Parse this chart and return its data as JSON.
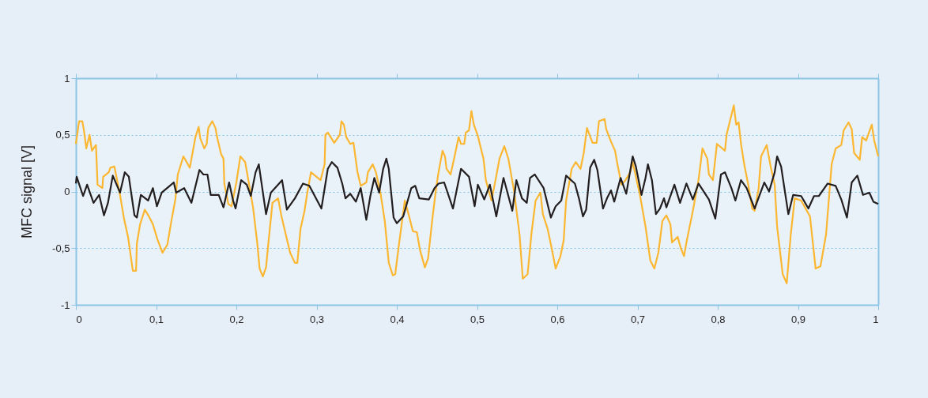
{
  "chart_data": {
    "type": "line",
    "ylabel": "MFC signal [V]",
    "xlim": [
      0,
      1
    ],
    "ylim": [
      -1,
      1
    ],
    "xticks": [
      0,
      {
        "value": 0.1,
        "label": "0,1"
      },
      {
        "value": 0.2,
        "label": "0,2"
      },
      {
        "value": 0.3,
        "label": "0,3"
      },
      {
        "value": 0.4,
        "label": "0,4"
      },
      {
        "value": 0.5,
        "label": "0,5"
      },
      {
        "value": 0.6,
        "label": "0,6"
      },
      {
        "value": 0.7,
        "label": "0,7"
      },
      {
        "value": 0.8,
        "label": "0,8"
      },
      {
        "value": 0.9,
        "label": "0,9"
      },
      1
    ],
    "yticks": [
      -1,
      {
        "value": -0.5,
        "label": "-0,5"
      },
      0,
      {
        "value": 0.5,
        "label": "0,5"
      },
      1
    ],
    "grid": "y",
    "legend": false,
    "line_style": "solid",
    "marker": "none",
    "series": [
      {
        "color": "#fbb731",
        "x": [
          0,
          0.004,
          0.008,
          0.01,
          0.013,
          0.017,
          0.02,
          0.025,
          0.026,
          0.027,
          0.033,
          0.034,
          0.041,
          0.043,
          0.048,
          0.055,
          0.06,
          0.065,
          0.071,
          0.075,
          0.076,
          0.08,
          0.086,
          0.091,
          0.096,
          0.102,
          0.108,
          0.114,
          0.119,
          0.124,
          0.127,
          0.134,
          0.142,
          0.149,
          0.153,
          0.155,
          0.16,
          0.163,
          0.165,
          0.17,
          0.174,
          0.176,
          0.181,
          0.184,
          0.185,
          0.19,
          0.194,
          0.2,
          0.205,
          0.211,
          0.216,
          0.221,
          0.226,
          0.229,
          0.233,
          0.237,
          0.24,
          0.245,
          0.252,
          0.256,
          0.261,
          0.267,
          0.273,
          0.276,
          0.28,
          0.285,
          0.288,
          0.293,
          0.305,
          0.31,
          0.311,
          0.314,
          0.322,
          0.329,
          0.331,
          0.334,
          0.337,
          0.342,
          0.346,
          0.351,
          0.355,
          0.362,
          0.364,
          0.37,
          0.374,
          0.38,
          0.385,
          0.39,
          0.395,
          0.398,
          0.403,
          0.41,
          0.415,
          0.42,
          0.425,
          0.429,
          0.435,
          0.439,
          0.444,
          0.449,
          0.452,
          0.457,
          0.46,
          0.462,
          0.467,
          0.472,
          0.477,
          0.48,
          0.484,
          0.486,
          0.49,
          0.493,
          0.496,
          0.501,
          0.508,
          0.511,
          0.518,
          0.523,
          0.528,
          0.534,
          0.539,
          0.546,
          0.553,
          0.557,
          0.563,
          0.568,
          0.573,
          0.579,
          0.582,
          0.588,
          0.593,
          0.598,
          0.604,
          0.608,
          0.611,
          0.618,
          0.623,
          0.629,
          0.633,
          0.637,
          0.644,
          0.649,
          0.652,
          0.659,
          0.661,
          0.667,
          0.672,
          0.675,
          0.68,
          0.685,
          0.691,
          0.694,
          0.703,
          0.71,
          0.716,
          0.721,
          0.726,
          0.731,
          0.736,
          0.741,
          0.743,
          0.75,
          0.754,
          0.758,
          0.761,
          0.769,
          0.776,
          0.781,
          0.787,
          0.789,
          0.794,
          0.799,
          0.809,
          0.811,
          0.82,
          0.823,
          0.826,
          0.829,
          0.833,
          0.838,
          0.843,
          0.846,
          0.851,
          0.854,
          0.861,
          0.866,
          0.871,
          0.874,
          0.881,
          0.886,
          0.891,
          0.896,
          0.904,
          0.915,
          0.922,
          0.928,
          0.935,
          0.942,
          0.947,
          0.954,
          0.957,
          0.963,
          0.967,
          0.97,
          0.977,
          0.98,
          0.985,
          0.992,
          0.995,
          1
        ],
        "values": [
          0.42,
          0.62,
          0.62,
          0.54,
          0.38,
          0.5,
          0.36,
          0.41,
          0.24,
          0.06,
          0.03,
          0.13,
          0.17,
          0.21,
          0.22,
          -0.03,
          -0.24,
          -0.4,
          -0.7,
          -0.7,
          -0.46,
          -0.29,
          -0.16,
          -0.22,
          -0.29,
          -0.43,
          -0.54,
          -0.47,
          -0.26,
          -0.07,
          0.15,
          0.31,
          0.21,
          0.48,
          0.57,
          0.47,
          0.38,
          0.42,
          0.56,
          0.62,
          0.56,
          0.48,
          0.33,
          0.29,
          0.07,
          -0.11,
          -0.13,
          0.08,
          0.31,
          0.26,
          0.06,
          -0.15,
          -0.45,
          -0.68,
          -0.75,
          -0.67,
          -0.45,
          -0.1,
          -0.06,
          -0.21,
          -0.36,
          -0.54,
          -0.63,
          -0.63,
          -0.33,
          -0.17,
          -0.03,
          0.17,
          0.1,
          0.24,
          0.5,
          0.52,
          0.43,
          0.5,
          0.62,
          0.59,
          0.48,
          0.42,
          0.43,
          0.17,
          0.05,
          0.08,
          0.17,
          0.24,
          0.17,
          -0.03,
          -0.26,
          -0.63,
          -0.74,
          -0.73,
          -0.45,
          -0.08,
          -0.21,
          -0.35,
          -0.36,
          -0.52,
          -0.67,
          -0.59,
          -0.26,
          0.03,
          0.17,
          0.36,
          0.31,
          0.2,
          0.15,
          0.31,
          0.48,
          0.42,
          0.42,
          0.52,
          0.54,
          0.71,
          0.59,
          0.49,
          0.29,
          0.1,
          -0.08,
          0.1,
          0.29,
          0.4,
          0.29,
          0.01,
          -0.38,
          -0.77,
          -0.73,
          -0.36,
          -0.08,
          -0.01,
          -0.2,
          -0.33,
          -0.5,
          -0.68,
          -0.57,
          -0.43,
          -0.08,
          0.2,
          0.26,
          0.2,
          0.34,
          0.56,
          0.43,
          0.43,
          0.62,
          0.64,
          0.55,
          0.44,
          0.36,
          0.24,
          0.06,
          0.1,
          0.17,
          0.26,
          -0.03,
          -0.31,
          -0.61,
          -0.68,
          -0.54,
          -0.26,
          -0.21,
          -0.29,
          -0.45,
          -0.4,
          -0.5,
          -0.57,
          -0.45,
          -0.17,
          0.1,
          0.38,
          0.29,
          0.15,
          0.1,
          0.42,
          0.36,
          0.5,
          0.76,
          0.59,
          0.61,
          0.42,
          0.24,
          0.06,
          -0.15,
          -0.17,
          0.03,
          0.31,
          0.41,
          0.22,
          0.06,
          -0.31,
          -0.73,
          -0.81,
          -0.38,
          -0.06,
          -0.08,
          -0.22,
          -0.68,
          -0.66,
          -0.38,
          0.24,
          0.38,
          0.41,
          0.54,
          0.61,
          0.55,
          0.34,
          0.28,
          0.48,
          0.45,
          0.59,
          0.45,
          0.31
        ]
      },
      {
        "color": "#231f20",
        "x": [
          0,
          0.001,
          0.009,
          0.014,
          0.022,
          0.029,
          0.035,
          0.04,
          0.046,
          0.055,
          0.061,
          0.066,
          0.073,
          0.076,
          0.081,
          0.09,
          0.096,
          0.101,
          0.107,
          0.117,
          0.122,
          0.125,
          0.135,
          0.144,
          0.154,
          0.159,
          0.164,
          0.168,
          0.178,
          0.184,
          0.191,
          0.196,
          0.199,
          0.206,
          0.213,
          0.218,
          0.224,
          0.228,
          0.237,
          0.243,
          0.257,
          0.263,
          0.273,
          0.283,
          0.291,
          0.306,
          0.314,
          0.319,
          0.326,
          0.332,
          0.336,
          0.342,
          0.349,
          0.355,
          0.362,
          0.367,
          0.372,
          0.378,
          0.383,
          0.387,
          0.39,
          0.396,
          0.4,
          0.408,
          0.418,
          0.423,
          0.428,
          0.44,
          0.447,
          0.452,
          0.459,
          0.47,
          0.48,
          0.49,
          0.497,
          0.501,
          0.509,
          0.516,
          0.524,
          0.533,
          0.544,
          0.549,
          0.556,
          0.562,
          0.566,
          0.572,
          0.583,
          0.592,
          0.598,
          0.605,
          0.611,
          0.622,
          0.627,
          0.632,
          0.636,
          0.641,
          0.646,
          0.65,
          0.657,
          0.662,
          0.667,
          0.671,
          0.679,
          0.686,
          0.694,
          0.698,
          0.705,
          0.71,
          0.713,
          0.718,
          0.723,
          0.728,
          0.733,
          0.736,
          0.746,
          0.753,
          0.761,
          0.769,
          0.776,
          0.789,
          0.797,
          0.804,
          0.809,
          0.817,
          0.822,
          0.829,
          0.836,
          0.846,
          0.858,
          0.864,
          0.871,
          0.874,
          0.879,
          0.888,
          0.894,
          0.904,
          0.913,
          0.92,
          0.926,
          0.937,
          0.947,
          0.954,
          0.961,
          0.967,
          0.974,
          0.981,
          0.989,
          0.994,
          1
        ],
        "values": [
          0.07,
          0.13,
          -0.04,
          0.06,
          -0.1,
          -0.03,
          -0.21,
          -0.1,
          0.14,
          -0.01,
          0.17,
          0.13,
          -0.21,
          -0.23,
          -0.03,
          -0.08,
          0.03,
          -0.13,
          -0.01,
          0.05,
          0.08,
          -0.01,
          0.03,
          -0.1,
          0.19,
          0.15,
          0.15,
          -0.03,
          -0.03,
          -0.14,
          0.08,
          -0.08,
          -0.15,
          0.1,
          0.06,
          -0.04,
          0.17,
          0.24,
          -0.2,
          -0.01,
          0.1,
          -0.16,
          -0.06,
          0.07,
          0.05,
          -0.15,
          0.2,
          0.26,
          0.21,
          0.07,
          -0.06,
          -0.02,
          -0.09,
          0.03,
          -0.25,
          -0.04,
          0.12,
          -0.01,
          0.2,
          0.29,
          0.2,
          -0.23,
          -0.28,
          -0.22,
          0.03,
          0.05,
          -0.06,
          -0.07,
          0.03,
          0.07,
          0.08,
          -0.15,
          0.2,
          0.13,
          -0.13,
          0.06,
          -0.07,
          0.06,
          -0.22,
          0.12,
          -0.17,
          0.1,
          -0.06,
          -0.1,
          0.12,
          0.15,
          0.03,
          -0.23,
          -0.13,
          -0.08,
          0.14,
          0.07,
          -0.06,
          -0.22,
          -0.16,
          0.21,
          0.28,
          0.19,
          -0.15,
          -0.06,
          0.01,
          -0.09,
          0.12,
          -0.02,
          0.31,
          0.22,
          -0.03,
          0.12,
          0.24,
          0.1,
          -0.2,
          -0.15,
          -0.06,
          -0.14,
          0.06,
          -0.1,
          0.07,
          -0.07,
          0.07,
          -0.07,
          -0.24,
          0.15,
          0.17,
          0.03,
          -0.08,
          0.1,
          0.03,
          -0.15,
          0.08,
          0,
          0.17,
          0.31,
          0.22,
          -0.2,
          -0.03,
          -0.04,
          -0.15,
          -0.04,
          -0.04,
          0.07,
          0.05,
          -0.07,
          -0.23,
          0.08,
          0.14,
          -0.03,
          -0.01,
          -0.09,
          -0.11
        ]
      }
    ]
  }
}
